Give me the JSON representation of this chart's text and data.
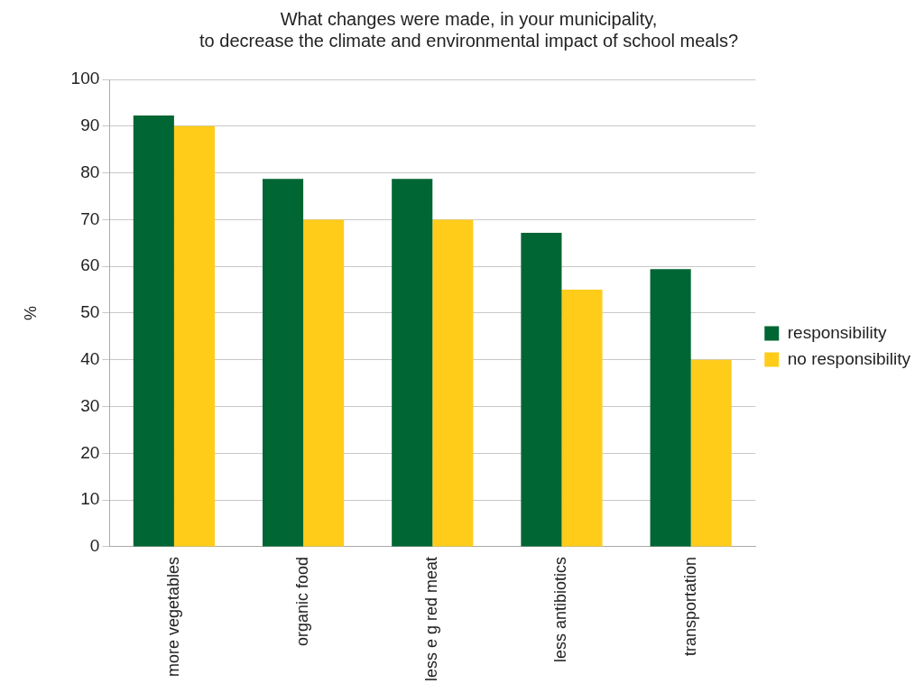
{
  "chart_data": {
    "type": "bar",
    "title": [
      "What changes were made, in your municipality,",
      "to decrease the climate and environmental impact of school meals?"
    ],
    "ylabel": "%",
    "categories": [
      "more vegetables",
      "organic food",
      "less e g red meat",
      "less antibiotics",
      "transportation"
    ],
    "series": [
      {
        "name": "responsibility",
        "color": "#006633",
        "values": [
          92.3,
          78.7,
          78.7,
          67.2,
          59.4
        ]
      },
      {
        "name": "no responsibility",
        "color": "#ffcc1a",
        "values": [
          90,
          70,
          70,
          55,
          40
        ]
      }
    ],
    "ylim": [
      0,
      100
    ],
    "yticks": [
      0,
      10,
      20,
      30,
      40,
      50,
      60,
      70,
      80,
      90,
      100
    ],
    "grid": "y",
    "legend": "right"
  }
}
